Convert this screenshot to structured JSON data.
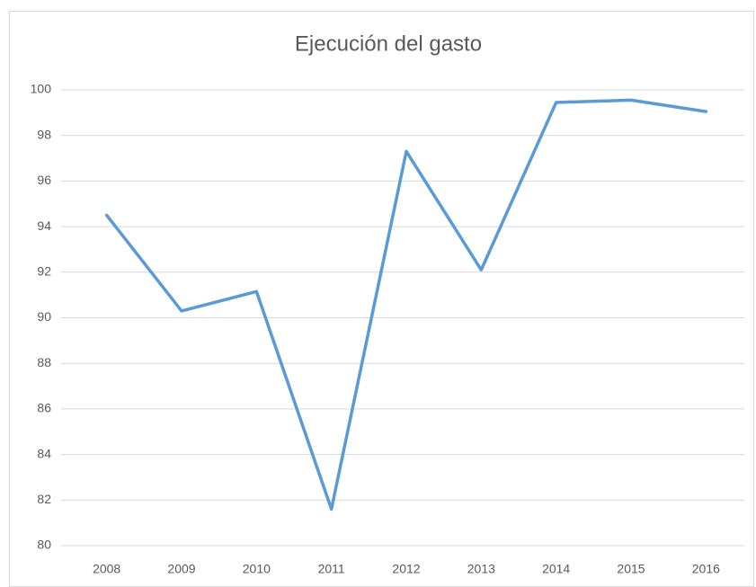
{
  "chart_data": {
    "type": "line",
    "title": "Ejecución del gasto",
    "categories": [
      "2008",
      "2009",
      "2010",
      "2011",
      "2012",
      "2013",
      "2014",
      "2015",
      "2016"
    ],
    "values": [
      94.5,
      90.3,
      91.15,
      81.6,
      97.3,
      92.1,
      99.45,
      99.55,
      99.05
    ],
    "color": "#5b9bd5",
    "ylim": [
      80,
      100
    ],
    "yticks": [
      80,
      82,
      84,
      86,
      88,
      90,
      92,
      94,
      96,
      98,
      100
    ],
    "grid": true
  }
}
